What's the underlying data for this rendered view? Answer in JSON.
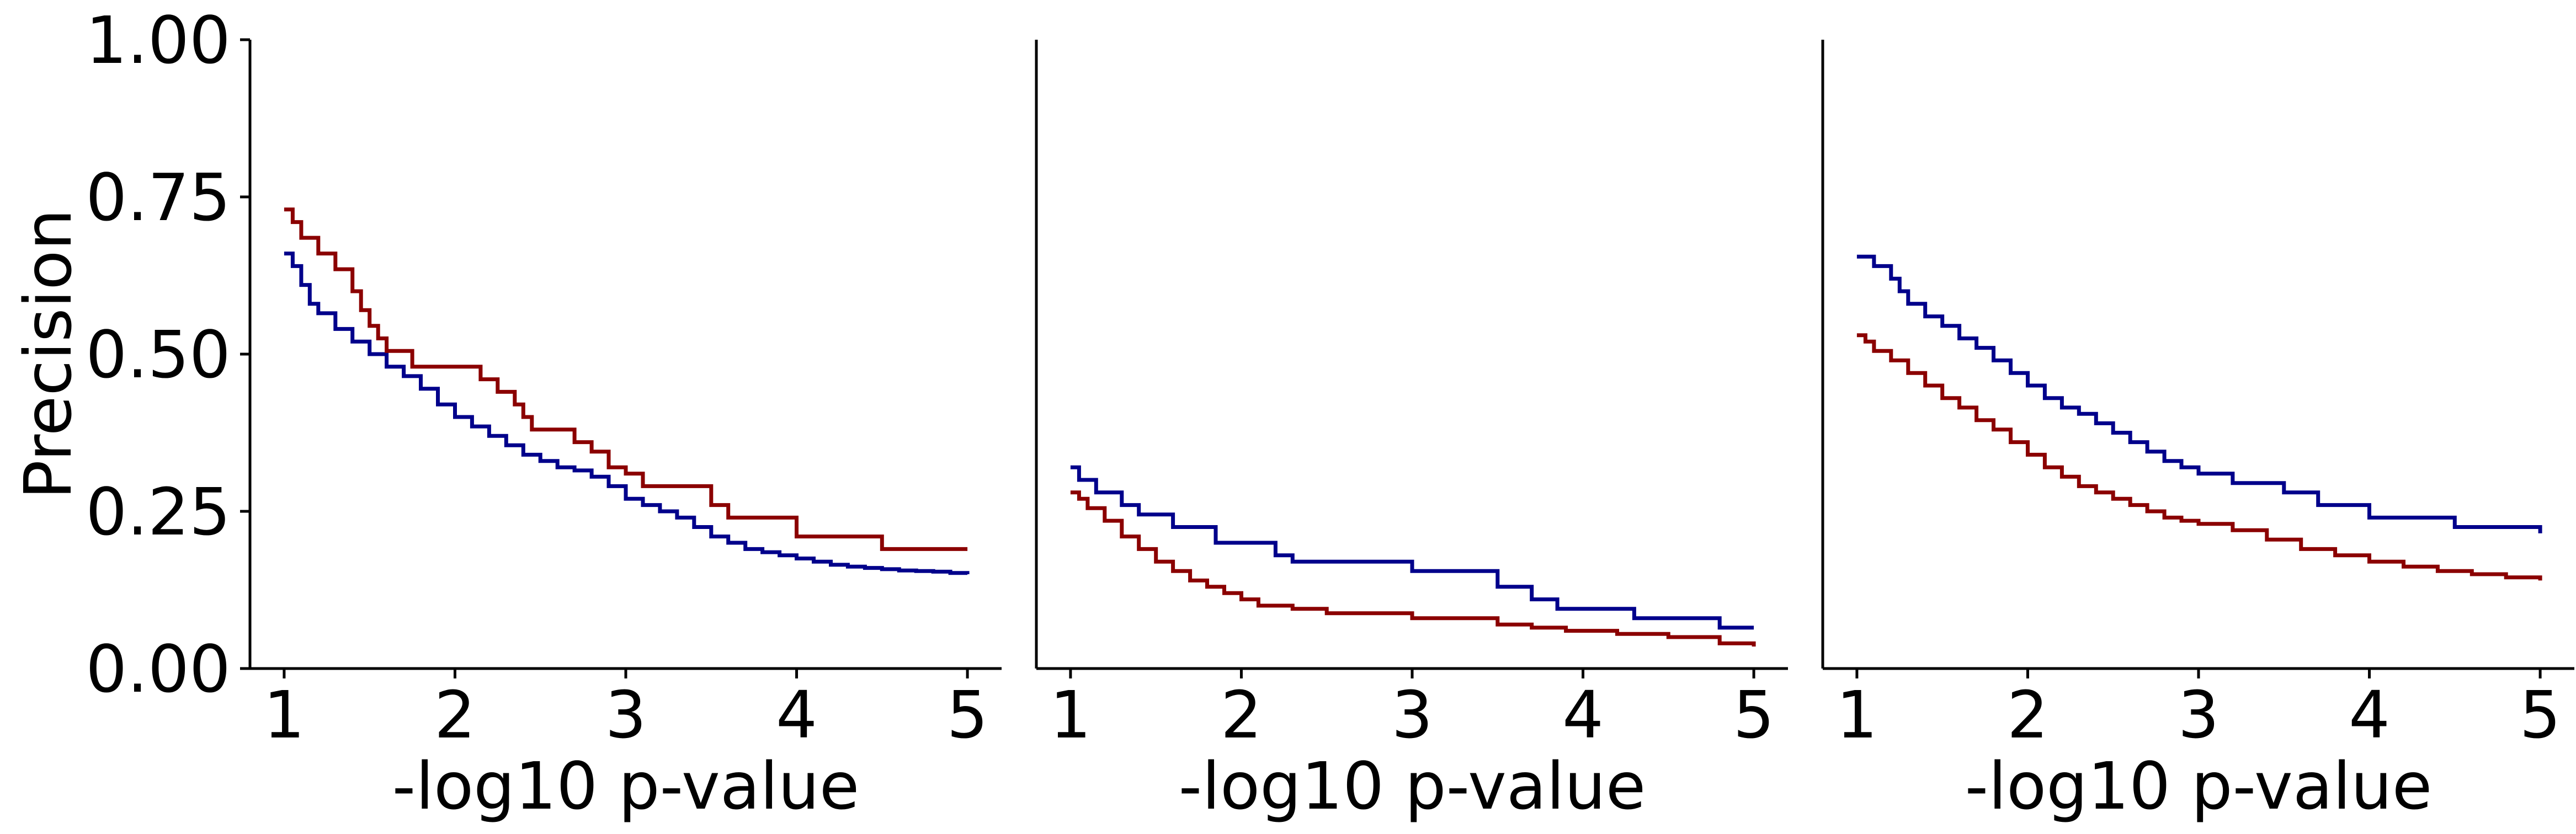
{
  "chart_data": [
    {
      "type": "line",
      "step": true,
      "ylabel": "Precision",
      "xlabel": "-log10 p-value",
      "xlim": [
        0.8,
        5.2
      ],
      "ylim": [
        0,
        1
      ],
      "x_ticks": [
        "1",
        "2",
        "3",
        "4",
        "5"
      ],
      "y_ticks": [
        "0.00",
        "0.25",
        "0.50",
        "0.75",
        "1.00"
      ],
      "grid": false,
      "series": [
        {
          "color": "#00008b",
          "x": [
            1.0,
            1.05,
            1.1,
            1.15,
            1.2,
            1.3,
            1.4,
            1.5,
            1.6,
            1.7,
            1.8,
            1.9,
            2.0,
            2.1,
            2.2,
            2.3,
            2.4,
            2.5,
            2.6,
            2.7,
            2.8,
            2.9,
            3.0,
            3.1,
            3.2,
            3.3,
            3.4,
            3.5,
            3.6,
            3.7,
            3.8,
            3.9,
            4.0,
            4.1,
            4.2,
            4.3,
            4.4,
            4.5,
            4.6,
            4.7,
            4.8,
            4.9,
            5.0
          ],
          "y": [
            0.66,
            0.64,
            0.61,
            0.58,
            0.565,
            0.54,
            0.52,
            0.5,
            0.48,
            0.465,
            0.445,
            0.42,
            0.4,
            0.385,
            0.37,
            0.355,
            0.34,
            0.33,
            0.32,
            0.315,
            0.305,
            0.29,
            0.27,
            0.26,
            0.25,
            0.24,
            0.225,
            0.21,
            0.2,
            0.19,
            0.185,
            0.18,
            0.175,
            0.17,
            0.165,
            0.162,
            0.16,
            0.158,
            0.156,
            0.155,
            0.154,
            0.152,
            0.15
          ]
        },
        {
          "color": "#8b0000",
          "x": [
            1.0,
            1.05,
            1.1,
            1.2,
            1.3,
            1.4,
            1.45,
            1.5,
            1.55,
            1.6,
            1.75,
            2.0,
            2.15,
            2.25,
            2.35,
            2.4,
            2.45,
            2.7,
            2.8,
            2.9,
            3.0,
            3.1,
            3.2,
            3.5,
            3.6,
            4.0,
            4.5,
            5.0
          ],
          "y": [
            0.73,
            0.71,
            0.685,
            0.66,
            0.635,
            0.6,
            0.57,
            0.545,
            0.525,
            0.505,
            0.48,
            0.48,
            0.46,
            0.44,
            0.42,
            0.4,
            0.38,
            0.36,
            0.345,
            0.32,
            0.31,
            0.29,
            0.29,
            0.26,
            0.24,
            0.21,
            0.19,
            0.19
          ]
        }
      ]
    },
    {
      "type": "line",
      "step": true,
      "ylabel": "",
      "xlabel": "-log10 p-value",
      "xlim": [
        0.8,
        5.2
      ],
      "ylim": [
        0,
        1
      ],
      "x_ticks": [
        "1",
        "2",
        "3",
        "4",
        "5"
      ],
      "y_ticks": [],
      "grid": false,
      "series": [
        {
          "color": "#00008b",
          "x": [
            1.0,
            1.05,
            1.15,
            1.3,
            1.4,
            1.6,
            1.85,
            2.2,
            2.3,
            3.0,
            3.5,
            3.7,
            3.85,
            4.3,
            4.8,
            5.0
          ],
          "y": [
            0.32,
            0.3,
            0.28,
            0.26,
            0.245,
            0.225,
            0.2,
            0.18,
            0.17,
            0.155,
            0.13,
            0.11,
            0.095,
            0.08,
            0.065,
            0.065
          ]
        },
        {
          "color": "#8b0000",
          "x": [
            1.0,
            1.05,
            1.1,
            1.2,
            1.3,
            1.4,
            1.5,
            1.6,
            1.7,
            1.8,
            1.9,
            2.0,
            2.1,
            2.3,
            2.5,
            3.0,
            3.5,
            3.7,
            3.9,
            4.2,
            4.5,
            4.8,
            5.0
          ],
          "y": [
            0.28,
            0.27,
            0.255,
            0.235,
            0.21,
            0.19,
            0.17,
            0.155,
            0.14,
            0.13,
            0.12,
            0.11,
            0.1,
            0.095,
            0.088,
            0.08,
            0.07,
            0.065,
            0.06,
            0.055,
            0.05,
            0.04,
            0.035
          ]
        }
      ]
    },
    {
      "type": "line",
      "step": true,
      "ylabel": "",
      "xlabel": "-log10 p-value",
      "xlim": [
        0.8,
        5.2
      ],
      "ylim": [
        0,
        1
      ],
      "x_ticks": [
        "1",
        "2",
        "3",
        "4",
        "5"
      ],
      "y_ticks": [],
      "grid": false,
      "series": [
        {
          "color": "#00008b",
          "x": [
            1.0,
            1.1,
            1.2,
            1.25,
            1.3,
            1.4,
            1.5,
            1.6,
            1.7,
            1.8,
            1.9,
            2.0,
            2.1,
            2.2,
            2.3,
            2.4,
            2.5,
            2.6,
            2.7,
            2.8,
            2.9,
            3.0,
            3.2,
            3.5,
            3.7,
            4.0,
            4.5,
            5.0
          ],
          "y": [
            0.655,
            0.64,
            0.62,
            0.6,
            0.58,
            0.56,
            0.545,
            0.525,
            0.51,
            0.49,
            0.47,
            0.45,
            0.43,
            0.415,
            0.405,
            0.39,
            0.375,
            0.36,
            0.345,
            0.33,
            0.32,
            0.31,
            0.295,
            0.28,
            0.26,
            0.24,
            0.225,
            0.215
          ]
        },
        {
          "color": "#8b0000",
          "x": [
            1.0,
            1.05,
            1.1,
            1.2,
            1.3,
            1.4,
            1.5,
            1.6,
            1.7,
            1.8,
            1.9,
            2.0,
            2.1,
            2.2,
            2.3,
            2.4,
            2.5,
            2.6,
            2.7,
            2.8,
            2.9,
            3.0,
            3.2,
            3.4,
            3.6,
            3.8,
            4.0,
            4.2,
            4.4,
            4.6,
            4.8,
            5.0
          ],
          "y": [
            0.53,
            0.52,
            0.505,
            0.49,
            0.47,
            0.45,
            0.43,
            0.415,
            0.395,
            0.38,
            0.36,
            0.34,
            0.32,
            0.305,
            0.29,
            0.28,
            0.27,
            0.26,
            0.25,
            0.24,
            0.235,
            0.23,
            0.22,
            0.205,
            0.19,
            0.18,
            0.17,
            0.162,
            0.155,
            0.15,
            0.145,
            0.14
          ]
        }
      ]
    }
  ]
}
